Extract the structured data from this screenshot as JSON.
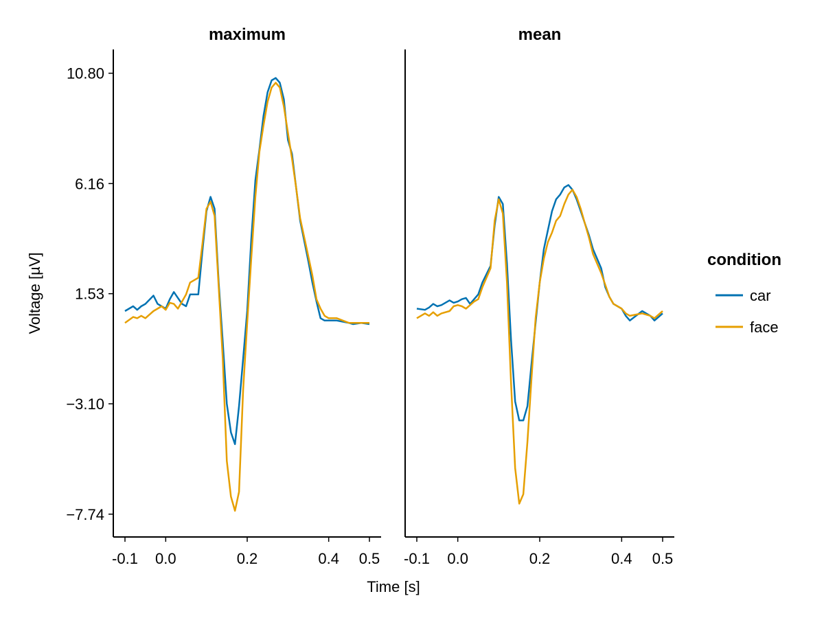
{
  "chart_data": {
    "type": "line",
    "xlabel": "Time [s]",
    "ylabel": "Voltage [µV]",
    "xlim": [
      -0.12,
      0.52
    ],
    "ylim": [
      -8.7,
      11.8
    ],
    "xticks": [
      -0.1,
      0.0,
      0.2,
      0.4,
      0.5
    ],
    "xtick_labels": [
      "-0.1",
      "0.0",
      "0.2",
      "0.4",
      "0.5"
    ],
    "yticks": [
      10.8,
      6.16,
      1.53,
      -3.1,
      -7.74
    ],
    "ytick_labels": [
      "10.80",
      "6.16",
      "1.53",
      "−3.10",
      "−7.74"
    ],
    "legend": {
      "title": "condition",
      "entries": [
        {
          "name": "car",
          "color": "#0072B2"
        },
        {
          "name": "face",
          "color": "#E69F00"
        }
      ]
    },
    "panels": [
      {
        "title": "maximum",
        "series": [
          {
            "name": "car",
            "color": "#0072B2",
            "points": [
              [
                -0.1,
                0.8
              ],
              [
                -0.08,
                1.0
              ],
              [
                -0.07,
                0.85
              ],
              [
                -0.06,
                1.0
              ],
              [
                -0.05,
                1.1
              ],
              [
                -0.03,
                1.45
              ],
              [
                -0.02,
                1.1
              ],
              [
                -0.01,
                1.0
              ],
              [
                0.0,
                0.9
              ],
              [
                0.01,
                1.3
              ],
              [
                0.02,
                1.6
              ],
              [
                0.03,
                1.35
              ],
              [
                0.04,
                1.1
              ],
              [
                0.05,
                1.0
              ],
              [
                0.06,
                1.5
              ],
              [
                0.08,
                1.5
              ],
              [
                0.09,
                3.3
              ],
              [
                0.1,
                5.0
              ],
              [
                0.11,
                5.6
              ],
              [
                0.12,
                5.1
              ],
              [
                0.13,
                2.0
              ],
              [
                0.14,
                -0.5
              ],
              [
                0.15,
                -3.1
              ],
              [
                0.16,
                -4.3
              ],
              [
                0.17,
                -4.8
              ],
              [
                0.18,
                -3.2
              ],
              [
                0.19,
                -1.2
              ],
              [
                0.2,
                0.8
              ],
              [
                0.21,
                3.8
              ],
              [
                0.22,
                6.3
              ],
              [
                0.23,
                7.6
              ],
              [
                0.24,
                9.0
              ],
              [
                0.25,
                10.0
              ],
              [
                0.26,
                10.5
              ],
              [
                0.27,
                10.6
              ],
              [
                0.28,
                10.4
              ],
              [
                0.29,
                9.7
              ],
              [
                0.3,
                8.0
              ],
              [
                0.31,
                7.4
              ],
              [
                0.32,
                6.0
              ],
              [
                0.33,
                4.6
              ],
              [
                0.35,
                2.9
              ],
              [
                0.36,
                2.0
              ],
              [
                0.37,
                1.2
              ],
              [
                0.38,
                0.5
              ],
              [
                0.39,
                0.4
              ],
              [
                0.4,
                0.4
              ],
              [
                0.42,
                0.4
              ],
              [
                0.45,
                0.3
              ],
              [
                0.46,
                0.25
              ],
              [
                0.48,
                0.3
              ],
              [
                0.5,
                0.25
              ]
            ]
          },
          {
            "name": "face",
            "color": "#E69F00",
            "points": [
              [
                -0.1,
                0.3
              ],
              [
                -0.08,
                0.55
              ],
              [
                -0.07,
                0.5
              ],
              [
                -0.06,
                0.6
              ],
              [
                -0.05,
                0.5
              ],
              [
                -0.03,
                0.8
              ],
              [
                -0.02,
                0.9
              ],
              [
                -0.01,
                1.0
              ],
              [
                0.0,
                0.85
              ],
              [
                0.01,
                1.15
              ],
              [
                0.02,
                1.1
              ],
              [
                0.03,
                0.9
              ],
              [
                0.04,
                1.2
              ],
              [
                0.05,
                1.5
              ],
              [
                0.06,
                2.0
              ],
              [
                0.08,
                2.2
              ],
              [
                0.09,
                3.6
              ],
              [
                0.1,
                5.1
              ],
              [
                0.11,
                5.4
              ],
              [
                0.12,
                4.8
              ],
              [
                0.13,
                1.8
              ],
              [
                0.14,
                -1.2
              ],
              [
                0.15,
                -5.5
              ],
              [
                0.16,
                -7.0
              ],
              [
                0.17,
                -7.6
              ],
              [
                0.18,
                -6.8
              ],
              [
                0.19,
                -2.5
              ],
              [
                0.2,
                0.3
              ],
              [
                0.21,
                3.0
              ],
              [
                0.22,
                5.6
              ],
              [
                0.23,
                7.5
              ],
              [
                0.24,
                8.6
              ],
              [
                0.25,
                9.6
              ],
              [
                0.26,
                10.2
              ],
              [
                0.27,
                10.4
              ],
              [
                0.28,
                10.2
              ],
              [
                0.29,
                9.4
              ],
              [
                0.3,
                8.3
              ],
              [
                0.31,
                7.2
              ],
              [
                0.32,
                6.0
              ],
              [
                0.33,
                4.7
              ],
              [
                0.35,
                3.1
              ],
              [
                0.36,
                2.3
              ],
              [
                0.37,
                1.3
              ],
              [
                0.38,
                0.9
              ],
              [
                0.39,
                0.6
              ],
              [
                0.4,
                0.5
              ],
              [
                0.42,
                0.5
              ],
              [
                0.45,
                0.3
              ],
              [
                0.46,
                0.3
              ],
              [
                0.48,
                0.3
              ],
              [
                0.5,
                0.3
              ]
            ]
          }
        ]
      },
      {
        "title": "mean",
        "series": [
          {
            "name": "car",
            "color": "#0072B2",
            "points": [
              [
                -0.1,
                0.9
              ],
              [
                -0.08,
                0.85
              ],
              [
                -0.07,
                0.95
              ],
              [
                -0.06,
                1.1
              ],
              [
                -0.05,
                1.0
              ],
              [
                -0.04,
                1.05
              ],
              [
                -0.02,
                1.25
              ],
              [
                -0.01,
                1.15
              ],
              [
                0.0,
                1.2
              ],
              [
                0.01,
                1.3
              ],
              [
                0.02,
                1.35
              ],
              [
                0.03,
                1.1
              ],
              [
                0.04,
                1.3
              ],
              [
                0.05,
                1.5
              ],
              [
                0.06,
                2.0
              ],
              [
                0.08,
                2.7
              ],
              [
                0.09,
                4.4
              ],
              [
                0.1,
                5.6
              ],
              [
                0.11,
                5.3
              ],
              [
                0.12,
                2.8
              ],
              [
                0.13,
                -0.4
              ],
              [
                0.14,
                -3.0
              ],
              [
                0.15,
                -3.8
              ],
              [
                0.16,
                -3.8
              ],
              [
                0.17,
                -3.2
              ],
              [
                0.18,
                -1.4
              ],
              [
                0.19,
                0.3
              ],
              [
                0.2,
                2.0
              ],
              [
                0.21,
                3.4
              ],
              [
                0.22,
                4.2
              ],
              [
                0.23,
                5.0
              ],
              [
                0.24,
                5.5
              ],
              [
                0.25,
                5.7
              ],
              [
                0.26,
                6.0
              ],
              [
                0.27,
                6.1
              ],
              [
                0.28,
                5.9
              ],
              [
                0.29,
                5.5
              ],
              [
                0.3,
                5.0
              ],
              [
                0.31,
                4.5
              ],
              [
                0.32,
                4.0
              ],
              [
                0.33,
                3.4
              ],
              [
                0.35,
                2.6
              ],
              [
                0.36,
                1.8
              ],
              [
                0.37,
                1.4
              ],
              [
                0.38,
                1.1
              ],
              [
                0.4,
                0.9
              ],
              [
                0.41,
                0.6
              ],
              [
                0.42,
                0.4
              ],
              [
                0.45,
                0.8
              ],
              [
                0.47,
                0.6
              ],
              [
                0.48,
                0.4
              ],
              [
                0.5,
                0.7
              ]
            ]
          },
          {
            "name": "face",
            "color": "#E69F00",
            "points": [
              [
                -0.1,
                0.5
              ],
              [
                -0.08,
                0.7
              ],
              [
                -0.07,
                0.6
              ],
              [
                -0.06,
                0.75
              ],
              [
                -0.05,
                0.6
              ],
              [
                -0.04,
                0.7
              ],
              [
                -0.02,
                0.8
              ],
              [
                -0.01,
                1.0
              ],
              [
                0.0,
                1.05
              ],
              [
                0.01,
                1.0
              ],
              [
                0.02,
                0.9
              ],
              [
                0.03,
                1.05
              ],
              [
                0.04,
                1.2
              ],
              [
                0.05,
                1.3
              ],
              [
                0.06,
                1.8
              ],
              [
                0.08,
                2.6
              ],
              [
                0.09,
                4.6
              ],
              [
                0.1,
                5.5
              ],
              [
                0.11,
                4.9
              ],
              [
                0.12,
                2.0
              ],
              [
                0.13,
                -2.2
              ],
              [
                0.14,
                -5.8
              ],
              [
                0.15,
                -7.3
              ],
              [
                0.16,
                -6.9
              ],
              [
                0.17,
                -4.7
              ],
              [
                0.18,
                -2.0
              ],
              [
                0.19,
                0.5
              ],
              [
                0.2,
                2.0
              ],
              [
                0.21,
                3.0
              ],
              [
                0.22,
                3.7
              ],
              [
                0.23,
                4.1
              ],
              [
                0.24,
                4.6
              ],
              [
                0.25,
                4.8
              ],
              [
                0.26,
                5.3
              ],
              [
                0.27,
                5.7
              ],
              [
                0.28,
                5.9
              ],
              [
                0.29,
                5.6
              ],
              [
                0.3,
                5.1
              ],
              [
                0.31,
                4.5
              ],
              [
                0.32,
                3.9
              ],
              [
                0.33,
                3.2
              ],
              [
                0.35,
                2.4
              ],
              [
                0.36,
                1.9
              ],
              [
                0.37,
                1.4
              ],
              [
                0.38,
                1.1
              ],
              [
                0.4,
                0.9
              ],
              [
                0.41,
                0.7
              ],
              [
                0.42,
                0.6
              ],
              [
                0.45,
                0.7
              ],
              [
                0.47,
                0.6
              ],
              [
                0.48,
                0.5
              ],
              [
                0.5,
                0.8
              ]
            ]
          }
        ]
      }
    ]
  }
}
